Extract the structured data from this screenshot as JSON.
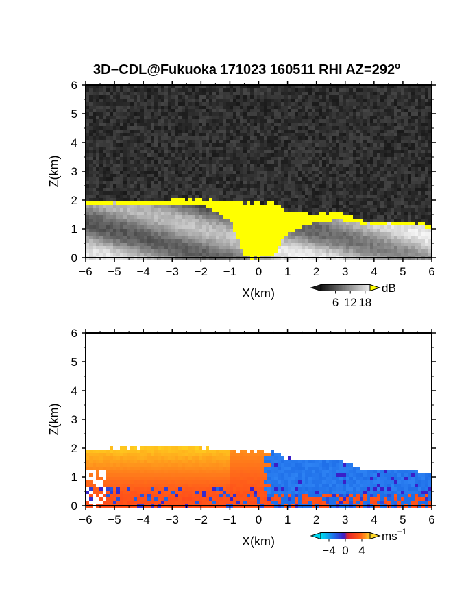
{
  "title": "3D−CDL@Fukuoka 171023 160511 RHI AZ=292",
  "title_degree": "o",
  "colors": {
    "snr_background": "#272727",
    "snr_saturated": "#ffff00",
    "vel_negative": "#1f6fe8",
    "vel_positive": "#ff4a1a",
    "vel_high": "#ffd21f",
    "vel_zero_band": "#3a1fc8"
  },
  "chart_data": [
    {
      "type": "heatmap",
      "name": "snr",
      "xlabel": "X(km)",
      "ylabel": "Z(km)",
      "xlim": [
        -6,
        6
      ],
      "ylim": [
        0,
        6
      ],
      "xticks": [
        -6,
        -5,
        -4,
        -3,
        -2,
        -1,
        0,
        1,
        2,
        3,
        4,
        5,
        6
      ],
      "yticks": [
        0,
        1,
        2,
        3,
        4,
        5,
        6
      ],
      "grid": false,
      "colorbar": {
        "unit": "dB",
        "ticks": [
          6,
          12,
          18
        ],
        "range": [
          0,
          20
        ],
        "scale": "grayscale",
        "over_color": "#ffff00"
      },
      "echo_top_km": {
        "x": [
          -6,
          -5,
          -4,
          -3,
          -2,
          -1,
          -0.5,
          0,
          0.5,
          1,
          1.5,
          2,
          2.5,
          3,
          3.5,
          4,
          4.5,
          5,
          5.5,
          6
        ],
        "z": [
          1.95,
          1.95,
          1.95,
          2.0,
          2.0,
          1.95,
          1.9,
          1.9,
          1.9,
          1.6,
          1.6,
          1.5,
          1.55,
          1.55,
          1.3,
          1.25,
          1.25,
          1.25,
          1.2,
          1.15
        ]
      },
      "saturated_region": {
        "x": [
          -6,
          -5,
          -4,
          -3,
          -2,
          -1,
          -0.5,
          0,
          0.5,
          1,
          1.5,
          2,
          2.5,
          3,
          3.5,
          4,
          4.5,
          5,
          5.5,
          6
        ],
        "bottom_km": [
          1.85,
          1.9,
          1.9,
          1.9,
          1.85,
          1.4,
          0.1,
          0.0,
          0.1,
          0.9,
          1.1,
          1.25,
          1.35,
          1.35,
          1.2,
          1.2,
          1.2,
          1.2,
          1.15,
          1.1
        ]
      }
    },
    {
      "type": "heatmap",
      "name": "doppler_velocity",
      "xlabel": "X(km)",
      "ylabel": "Z(km)",
      "xlim": [
        -6,
        6
      ],
      "ylim": [
        0,
        6
      ],
      "xticks": [
        -6,
        -5,
        -4,
        -3,
        -2,
        -1,
        0,
        1,
        2,
        3,
        4,
        5,
        6
      ],
      "yticks": [
        0,
        1,
        2,
        3,
        4,
        5,
        6
      ],
      "grid": false,
      "colorbar": {
        "unit": "ms",
        "unit_exponent": "−1",
        "ticks": [
          -4,
          0,
          4
        ],
        "tick_labels": [
          "−4",
          "0",
          "4"
        ],
        "range": [
          -6,
          6
        ],
        "scale": "cyan-blue-red-yellow"
      },
      "echo_top_km": {
        "x": [
          -6,
          -5,
          -4,
          -3,
          -2,
          -1,
          -0.5,
          0,
          0.5,
          1,
          1.5,
          2,
          2.5,
          3,
          3.5,
          4,
          4.5,
          5,
          5.5,
          6
        ],
        "z": [
          1.95,
          2.0,
          2.05,
          2.05,
          2.0,
          1.95,
          1.9,
          1.9,
          1.9,
          1.65,
          1.6,
          1.6,
          1.6,
          1.55,
          1.3,
          1.25,
          1.25,
          1.25,
          1.2,
          1.15
        ]
      },
      "sign_boundary_x_km": 0.3
    }
  ]
}
